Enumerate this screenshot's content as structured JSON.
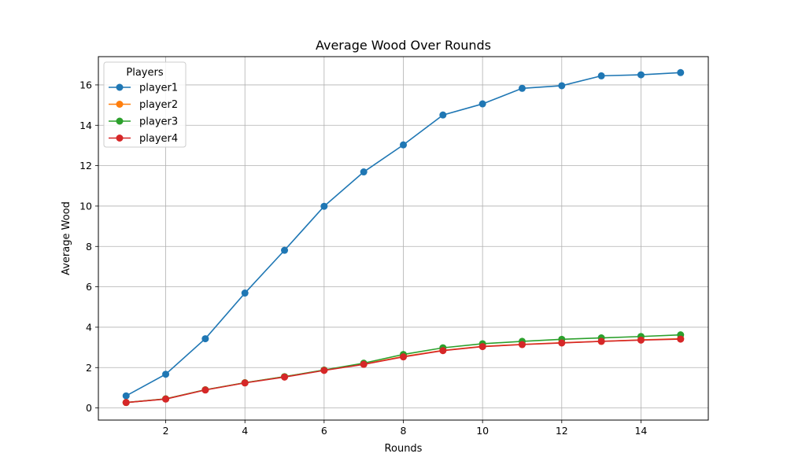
{
  "chart_data": {
    "type": "line",
    "title": "Average Wood Over Rounds",
    "xlabel": "Rounds",
    "ylabel": "Average Wood",
    "x": [
      1,
      2,
      3,
      4,
      5,
      6,
      7,
      8,
      9,
      10,
      11,
      12,
      13,
      14,
      15
    ],
    "xticks": [
      2,
      4,
      6,
      8,
      10,
      12,
      14
    ],
    "yticks": [
      0,
      2,
      4,
      6,
      8,
      10,
      12,
      14,
      16
    ],
    "xlim": [
      0.3,
      15.7
    ],
    "ylim": [
      -0.6,
      17.4
    ],
    "grid": true,
    "markers": true,
    "legend": {
      "title": "Players",
      "placement": "top-left"
    },
    "series": [
      {
        "name": "player1",
        "color": "#1f77b4",
        "values": [
          0.6,
          1.67,
          3.43,
          5.69,
          7.81,
          9.99,
          11.69,
          13.03,
          14.51,
          15.06,
          15.83,
          15.96,
          16.45,
          16.5,
          16.61
        ]
      },
      {
        "name": "player2",
        "color": "#ff7f0e",
        "values": [
          0.27,
          0.45,
          0.9,
          1.25,
          1.55,
          1.87,
          2.17,
          2.55,
          2.85,
          3.05,
          3.15,
          3.23,
          3.3,
          3.37,
          3.43
        ]
      },
      {
        "name": "player3",
        "color": "#2ca02c",
        "values": [
          0.27,
          0.45,
          0.9,
          1.25,
          1.55,
          1.88,
          2.22,
          2.65,
          2.98,
          3.18,
          3.3,
          3.4,
          3.47,
          3.54,
          3.62
        ]
      },
      {
        "name": "player4",
        "color": "#d62728",
        "values": [
          0.27,
          0.44,
          0.89,
          1.24,
          1.53,
          1.86,
          2.16,
          2.53,
          2.84,
          3.04,
          3.14,
          3.22,
          3.3,
          3.36,
          3.41
        ]
      }
    ]
  }
}
